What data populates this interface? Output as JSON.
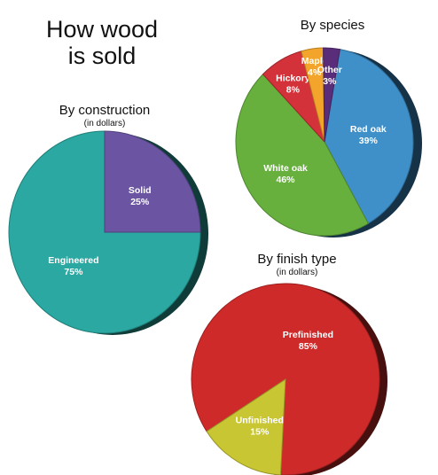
{
  "headline": {
    "line1": "How wood",
    "line2": "is sold"
  },
  "chart_data": [
    {
      "type": "pie",
      "title": "By construction",
      "subtitle": "(in dollars)",
      "unit": "%",
      "slices": [
        {
          "label": "Engineered",
          "value": 75,
          "color": "#2aa8a1"
        },
        {
          "label": "Solid",
          "value": 25,
          "color": "#6b55a3"
        }
      ]
    },
    {
      "type": "pie",
      "title": "By species",
      "subtitle": "",
      "unit": "%",
      "slices": [
        {
          "label": "Red oak",
          "value": 39,
          "color": "#3f8fc8"
        },
        {
          "label": "White oak",
          "value": 46,
          "color": "#67b03d"
        },
        {
          "label": "Hickory",
          "value": 8,
          "color": "#d3323a"
        },
        {
          "label": "Maple",
          "value": 4,
          "color": "#f2a52a"
        },
        {
          "label": "Other",
          "value": 3,
          "color": "#5a2d7a"
        }
      ]
    },
    {
      "type": "pie",
      "title": "By finish type",
      "subtitle": "(in dollars)",
      "unit": "%",
      "slices": [
        {
          "label": "Prefinished",
          "value": 85,
          "color": "#cf2a2a"
        },
        {
          "label": "Unfinished",
          "value": 15,
          "color": "#c9c634"
        }
      ]
    }
  ]
}
